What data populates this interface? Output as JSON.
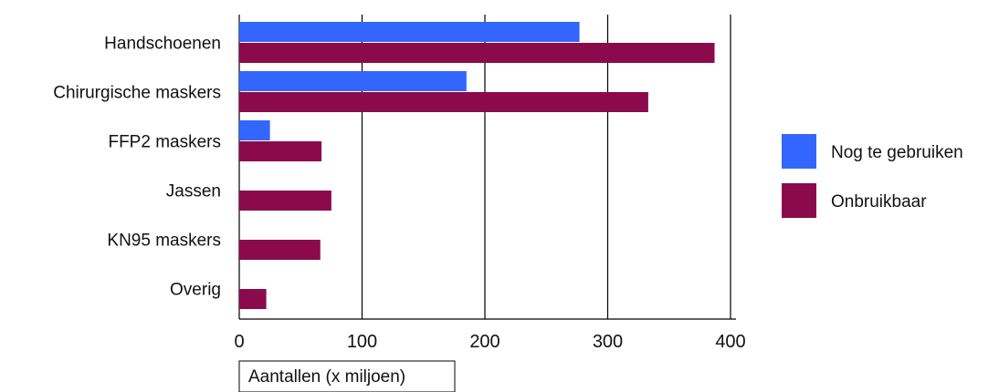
{
  "chart_data": {
    "type": "bar",
    "orientation": "horizontal",
    "title": "",
    "xlabel": "Aantallen (x miljoen)",
    "ylabel": "",
    "categories": [
      "Handschoenen",
      "Chirurgische maskers",
      "FFP2 maskers",
      "Jassen",
      "KN95 maskers",
      "Overig"
    ],
    "series": [
      {
        "name": "Nog te gebruiken",
        "color": "#3366ff",
        "values": [
          277,
          185,
          25,
          0,
          0,
          0
        ]
      },
      {
        "name": "Onbruikbaar",
        "color": "#8b0a4c",
        "values": [
          387,
          333,
          67,
          75,
          66,
          22
        ]
      }
    ],
    "xlim": [
      0,
      400
    ],
    "xticks": [
      0,
      100,
      200,
      300,
      400
    ],
    "grid": true,
    "legend": "right"
  }
}
